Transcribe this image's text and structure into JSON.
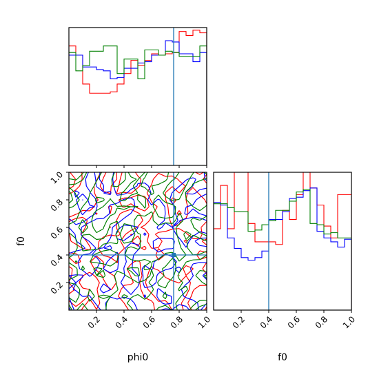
{
  "chart_data": [
    {
      "type": "histogram",
      "panel": "phi0-marginal",
      "xlim": [
        0,
        1
      ],
      "bins": [
        0.0,
        0.05,
        0.1,
        0.15,
        0.2,
        0.25,
        0.3,
        0.35,
        0.4,
        0.45,
        0.5,
        0.55,
        0.6,
        0.65,
        0.7,
        0.75,
        0.8,
        0.85,
        0.9,
        0.95,
        1.0
      ],
      "truth": 0.76,
      "series": [
        {
          "color": "#ff0000",
          "values": [
            0.91,
            0.84,
            0.62,
            0.55,
            0.55,
            0.55,
            0.56,
            0.62,
            0.7,
            0.8,
            0.76,
            0.8,
            0.85,
            0.84,
            0.85,
            0.86,
            1.02,
            0.99,
            1.03,
            1.01
          ]
        },
        {
          "color": "#0000ff",
          "values": [
            0.84,
            0.84,
            0.75,
            0.75,
            0.73,
            0.72,
            0.66,
            0.67,
            0.74,
            0.74,
            0.78,
            0.79,
            0.84,
            0.84,
            0.95,
            0.94,
            0.85,
            0.85,
            0.79,
            0.86
          ]
        },
        {
          "color": "#008000",
          "values": [
            0.86,
            0.72,
            0.76,
            0.87,
            0.87,
            0.91,
            0.91,
            0.7,
            0.81,
            0.81,
            0.66,
            0.88,
            0.88,
            0.84,
            0.87,
            0.86,
            0.83,
            0.83,
            0.83,
            0.91
          ]
        }
      ]
    },
    {
      "type": "contour",
      "panel": "phi0-f0-joint",
      "xlabel": "phi0",
      "ylabel": "f0",
      "xlim": [
        0,
        1
      ],
      "ylim": [
        0,
        1
      ],
      "xticks": [
        "0.2",
        "0.4",
        "0.6",
        "0.8",
        "1.0"
      ],
      "yticks": [
        "0.2",
        "0.4",
        "0.6",
        "0.8",
        "1.0"
      ],
      "truth": [
        0.76,
        0.4
      ],
      "series": [
        {
          "color": "#ff0000"
        },
        {
          "color": "#0000ff"
        },
        {
          "color": "#008000"
        }
      ]
    },
    {
      "type": "histogram",
      "panel": "f0-marginal",
      "xlabel": "f0",
      "xlim": [
        0,
        1
      ],
      "xticks": [
        "0.2",
        "0.4",
        "0.6",
        "0.8",
        "1.0"
      ],
      "bins": [
        0.0,
        0.05,
        0.1,
        0.15,
        0.2,
        0.25,
        0.3,
        0.35,
        0.4,
        0.45,
        0.5,
        0.55,
        0.6,
        0.65,
        0.7,
        0.75,
        0.8,
        0.85,
        0.9,
        0.95,
        1.0
      ],
      "truth": 0.4,
      "series": [
        {
          "color": "#ff0000",
          "values": [
            0.62,
            0.95,
            0.62,
            1.12,
            1.05,
            0.66,
            0.52,
            0.52,
            0.52,
            0.5,
            0.76,
            0.69,
            0.88,
            1.05,
            0.93,
            0.8,
            0.64,
            0.55,
            0.88,
            0.88
          ]
        },
        {
          "color": "#0000ff",
          "values": [
            0.82,
            0.8,
            0.55,
            0.47,
            0.4,
            0.38,
            0.4,
            0.45,
            0.69,
            0.69,
            0.75,
            0.85,
            0.86,
            0.91,
            0.93,
            0.6,
            0.55,
            0.52,
            0.48,
            0.54
          ]
        },
        {
          "color": "#008000",
          "values": [
            0.81,
            0.81,
            0.78,
            0.75,
            0.75,
            0.6,
            0.61,
            0.65,
            0.68,
            0.76,
            0.76,
            0.83,
            0.9,
            0.92,
            0.66,
            0.65,
            0.58,
            0.59,
            0.55,
            0.55
          ]
        }
      ]
    }
  ]
}
